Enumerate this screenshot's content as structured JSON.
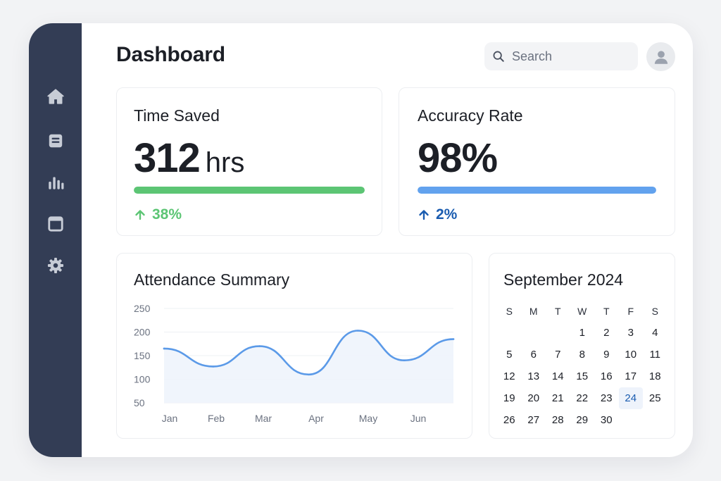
{
  "sidebar": {
    "items": [
      {
        "icon": "home-icon"
      },
      {
        "icon": "document-icon"
      },
      {
        "icon": "bar-chart-icon"
      },
      {
        "icon": "window-icon"
      },
      {
        "icon": "gear-icon"
      }
    ]
  },
  "header": {
    "title": "Dashboard",
    "search_placeholder": "Search"
  },
  "stats": {
    "time_saved": {
      "title": "Time Saved",
      "value": "312",
      "unit": "hrs",
      "delta": "38%",
      "progress": 1.0,
      "color": "#5cc574"
    },
    "accuracy": {
      "title": "Accuracy Rate",
      "value": "98%",
      "delta": "2%",
      "progress": 1.0,
      "color": "#62a2ee",
      "delta_color": "#1a5cb0"
    }
  },
  "attendance": {
    "title": "Attendance Summary"
  },
  "chart_data": {
    "type": "line",
    "title": "Attendance Summary",
    "categories": [
      "Jan",
      "Feb",
      "Mar",
      "Apr",
      "May",
      "Jun"
    ],
    "x": [
      0.0,
      0.17,
      0.33,
      0.5,
      0.67,
      0.83,
      1.0
    ],
    "y_ticks": [
      250,
      200,
      150,
      100,
      50
    ],
    "ylim": [
      50,
      250
    ],
    "grid": true,
    "series": [
      {
        "values": [
          165,
          127,
          170,
          110,
          203,
          140,
          185
        ],
        "color": "#5b9ae8"
      }
    ]
  },
  "calendar": {
    "title": "September 2024",
    "weekdays": [
      "S",
      "M",
      "T",
      "W",
      "T",
      "F",
      "S"
    ],
    "leading_blanks": 3,
    "days": 30,
    "today": 24
  }
}
